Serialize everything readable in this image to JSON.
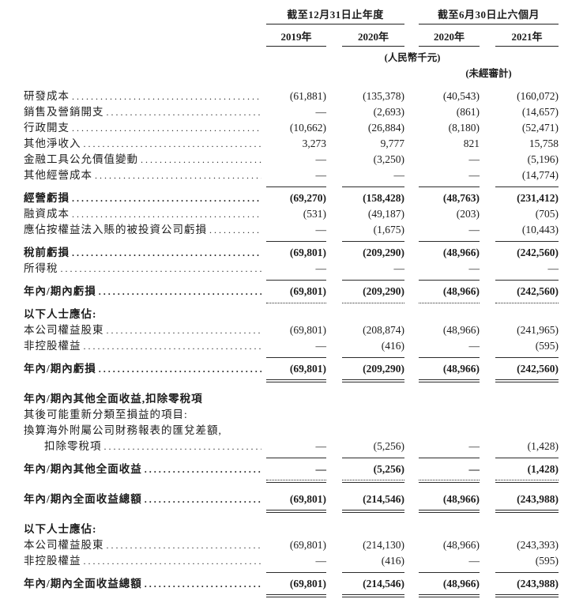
{
  "colors": {
    "ink": "#1c1c1c",
    "rule": "#2b2b2b",
    "background": "#ffffff"
  },
  "header": {
    "group1": {
      "label": "截至12月31日止年度",
      "cols": [
        "2019年",
        "2020年"
      ]
    },
    "group2": {
      "label": "截至6月30日止六個月",
      "cols": [
        "2020年",
        "2021年"
      ]
    },
    "unit_note": "(人民幣千元)",
    "audit_note": "(未經審計)"
  },
  "rows": [
    {
      "type": "data",
      "label": "研發成本",
      "bold": false,
      "indent": false,
      "values": [
        "(61,881)",
        "(135,378)",
        "(40,543)",
        "(160,072)"
      ]
    },
    {
      "type": "data",
      "label": "銷售及營銷開支",
      "bold": false,
      "indent": false,
      "values": [
        "—",
        "(2,693)",
        "(861)",
        "(14,657)"
      ]
    },
    {
      "type": "data",
      "label": "行政開支",
      "bold": false,
      "indent": false,
      "values": [
        "(10,662)",
        "(26,884)",
        "(8,180)",
        "(52,471)"
      ]
    },
    {
      "type": "data",
      "label": "其他淨收入",
      "bold": false,
      "indent": false,
      "values": [
        "3,273",
        "9,777",
        "821",
        "15,758"
      ]
    },
    {
      "type": "data",
      "label": "金融工具公允價值變動",
      "bold": false,
      "indent": false,
      "values": [
        "—",
        "(3,250)",
        "—",
        "(5,196)"
      ]
    },
    {
      "type": "data",
      "label": "其他經營成本",
      "bold": false,
      "indent": false,
      "values": [
        "—",
        "—",
        "—",
        "(14,774)"
      ]
    },
    {
      "type": "rule",
      "style": "single"
    },
    {
      "type": "data",
      "label": "經營虧損",
      "bold": true,
      "indent": false,
      "values": [
        "(69,270)",
        "(158,428)",
        "(48,763)",
        "(231,412)"
      ]
    },
    {
      "type": "data",
      "label": "融資成本",
      "bold": false,
      "indent": false,
      "values": [
        "(531)",
        "(49,187)",
        "(203)",
        "(705)"
      ]
    },
    {
      "type": "data",
      "label": "應佔按權益法入賬的被投資公司虧損",
      "bold": false,
      "indent": false,
      "values": [
        "—",
        "(1,675)",
        "—",
        "(10,443)"
      ]
    },
    {
      "type": "rule",
      "style": "single"
    },
    {
      "type": "data",
      "label": "稅前虧損",
      "bold": true,
      "indent": false,
      "values": [
        "(69,801)",
        "(209,290)",
        "(48,966)",
        "(242,560)"
      ]
    },
    {
      "type": "data",
      "label": "所得稅",
      "bold": false,
      "indent": false,
      "values": [
        "—",
        "—",
        "—",
        "—"
      ]
    },
    {
      "type": "rule",
      "style": "single"
    },
    {
      "type": "data",
      "label": "年內/期內虧損",
      "bold": true,
      "indent": false,
      "values": [
        "(69,801)",
        "(209,290)",
        "(48,966)",
        "(242,560)"
      ]
    },
    {
      "type": "rule",
      "style": "dotted"
    },
    {
      "type": "text",
      "label": "以下人士應佔:",
      "bold": true
    },
    {
      "type": "data",
      "label": "本公司權益股東",
      "bold": false,
      "indent": false,
      "values": [
        "(69,801)",
        "(208,874)",
        "(48,966)",
        "(241,965)"
      ]
    },
    {
      "type": "data",
      "label": "非控股權益",
      "bold": false,
      "indent": false,
      "values": [
        "—",
        "(416)",
        "—",
        "(595)"
      ]
    },
    {
      "type": "rule",
      "style": "single"
    },
    {
      "type": "data",
      "label": "年內/期內虧損",
      "bold": true,
      "indent": false,
      "values": [
        "(69,801)",
        "(209,290)",
        "(48,966)",
        "(242,560)"
      ]
    },
    {
      "type": "rule",
      "style": "double"
    },
    {
      "type": "spacer"
    },
    {
      "type": "text",
      "label": "年內/期內其他全面收益,扣除零稅項",
      "bold": true
    },
    {
      "type": "text",
      "label": "其後可能重新分類至損益的項目:",
      "bold": false
    },
    {
      "type": "text",
      "label": "換算海外附屬公司財務報表的匯兌差額,",
      "bold": false
    },
    {
      "type": "data",
      "label": "扣除零稅項",
      "bold": false,
      "indent": true,
      "values": [
        "—",
        "(5,256)",
        "—",
        "(1,428)"
      ]
    },
    {
      "type": "rule",
      "style": "single"
    },
    {
      "type": "data",
      "label": "年內/期內其他全面收益",
      "bold": true,
      "indent": false,
      "values": [
        "—",
        "(5,256)",
        "—",
        "(1,428)"
      ]
    },
    {
      "type": "rule",
      "style": "dotted-solid"
    },
    {
      "type": "spacer"
    },
    {
      "type": "data",
      "label": "年內/期內全面收益總額",
      "bold": true,
      "indent": false,
      "values": [
        "(69,801)",
        "(214,546)",
        "(48,966)",
        "(243,988)"
      ]
    },
    {
      "type": "rule",
      "style": "double"
    },
    {
      "type": "spacer"
    },
    {
      "type": "text",
      "label": "以下人士應佔:",
      "bold": true
    },
    {
      "type": "data",
      "label": "本公司權益股東",
      "bold": false,
      "indent": false,
      "values": [
        "(69,801)",
        "(214,130)",
        "(48,966)",
        "(243,393)"
      ]
    },
    {
      "type": "data",
      "label": "非控股權益",
      "bold": false,
      "indent": false,
      "values": [
        "—",
        "(416)",
        "—",
        "(595)"
      ]
    },
    {
      "type": "rule",
      "style": "single"
    },
    {
      "type": "data",
      "label": "年內/期內全面收益總額",
      "bold": true,
      "indent": false,
      "values": [
        "(69,801)",
        "(214,546)",
        "(48,966)",
        "(243,988)"
      ]
    },
    {
      "type": "rule",
      "style": "double"
    }
  ]
}
